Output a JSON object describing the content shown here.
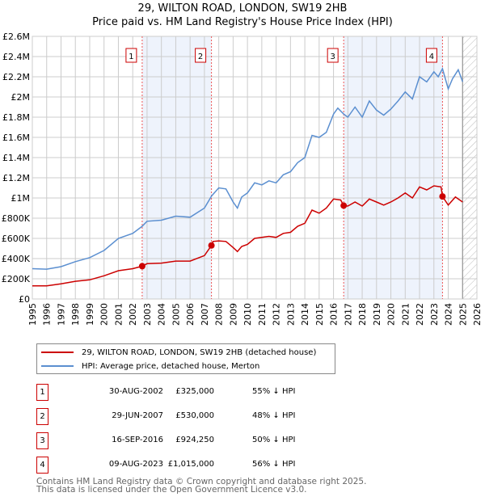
{
  "header": {
    "title": "29, WILTON ROAD, LONDON, SW19 2HB",
    "subtitle": "Price paid vs. HM Land Registry's House Price Index (HPI)"
  },
  "legend": {
    "property": "29, WILTON ROAD, LONDON, SW19 2HB (detached house)",
    "hpi": "HPI: Average price, detached house, Merton"
  },
  "sales": [
    {
      "num": "1",
      "date": "30-AUG-2002",
      "price": "£325,000",
      "hpi": "55% ↓ HPI"
    },
    {
      "num": "2",
      "date": "29-JUN-2007",
      "price": "£530,000",
      "hpi": "48% ↓ HPI"
    },
    {
      "num": "3",
      "date": "16-SEP-2016",
      "price": "£924,250",
      "hpi": "50% ↓ HPI"
    },
    {
      "num": "4",
      "date": "09-AUG-2023",
      "price": "£1,015,000",
      "hpi": "56% ↓ HPI"
    }
  ],
  "footer": {
    "line1": "Contains HM Land Registry data © Crown copyright and database right 2025.",
    "line2": "This data is licensed under the Open Government Licence v3.0."
  },
  "colors": {
    "property": "#cc0000",
    "hpi": "#5b8fd0",
    "shade": "#eef3fc",
    "grid": "#cccccc"
  },
  "chart_data": {
    "type": "line",
    "title": "29, WILTON ROAD, LONDON, SW19 2HB",
    "xlim": [
      1995,
      2026
    ],
    "ylim": [
      0,
      2600000
    ],
    "x_ticks": [
      1995,
      1996,
      1997,
      1998,
      1999,
      2000,
      2001,
      2002,
      2003,
      2004,
      2005,
      2006,
      2007,
      2008,
      2009,
      2010,
      2011,
      2012,
      2013,
      2014,
      2015,
      2016,
      2017,
      2018,
      2019,
      2020,
      2021,
      2022,
      2023,
      2024,
      2025,
      2026
    ],
    "y_ticks": [
      {
        "v": 0,
        "label": "£0"
      },
      {
        "v": 200000,
        "label": "£200K"
      },
      {
        "v": 400000,
        "label": "£400K"
      },
      {
        "v": 600000,
        "label": "£600K"
      },
      {
        "v": 800000,
        "label": "£800K"
      },
      {
        "v": 1000000,
        "label": "£1M"
      },
      {
        "v": 1200000,
        "label": "£1.2M"
      },
      {
        "v": 1400000,
        "label": "£1.4M"
      },
      {
        "v": 1600000,
        "label": "£1.6M"
      },
      {
        "v": 1800000,
        "label": "£1.8M"
      },
      {
        "v": 2000000,
        "label": "£2M"
      },
      {
        "v": 2200000,
        "label": "£2.2M"
      },
      {
        "v": 2400000,
        "label": "£2.4M"
      },
      {
        "v": 2600000,
        "label": "£2.6M"
      }
    ],
    "forecast_from": 2025,
    "shaded": [
      [
        2002.66,
        2007.49
      ],
      [
        2016.71,
        2023.6
      ]
    ],
    "sale_points": [
      {
        "label": "1",
        "x": 2002.66,
        "y": 325000
      },
      {
        "label": "2",
        "x": 2007.49,
        "y": 530000
      },
      {
        "label": "3",
        "x": 2016.71,
        "y": 924250
      },
      {
        "label": "4",
        "x": 2023.6,
        "y": 1015000
      }
    ],
    "series": [
      {
        "name": "HPI: Average price, detached house, Merton",
        "color": "#5b8fd0",
        "x": [
          1995,
          1996,
          1997,
          1998,
          1999,
          2000,
          2001,
          2002,
          2002.66,
          2003,
          2004,
          2005,
          2006,
          2007,
          2007.5,
          2008,
          2008.5,
          2009,
          2009.3,
          2009.6,
          2010,
          2010.5,
          2011,
          2011.5,
          2012,
          2012.5,
          2013,
          2013.5,
          2014,
          2014.5,
          2015,
          2015.5,
          2016,
          2016.3,
          2016.71,
          2017,
          2017.5,
          2018,
          2018.5,
          2019,
          2019.5,
          2020,
          2020.5,
          2021,
          2021.5,
          2022,
          2022.5,
          2023,
          2023.3,
          2023.6,
          2024,
          2024.3,
          2024.7,
          2025
        ],
        "y": [
          300000,
          295000,
          320000,
          370000,
          410000,
          480000,
          600000,
          650000,
          720000,
          770000,
          780000,
          820000,
          810000,
          900000,
          1020000,
          1100000,
          1090000,
          960000,
          900000,
          1010000,
          1050000,
          1150000,
          1130000,
          1170000,
          1150000,
          1230000,
          1260000,
          1350000,
          1400000,
          1620000,
          1600000,
          1650000,
          1830000,
          1890000,
          1830000,
          1800000,
          1900000,
          1800000,
          1960000,
          1870000,
          1820000,
          1880000,
          1960000,
          2050000,
          1980000,
          2200000,
          2150000,
          2250000,
          2200000,
          2280000,
          2080000,
          2180000,
          2270000,
          2150000
        ]
      },
      {
        "name": "29, WILTON ROAD, LONDON, SW19 2HB (detached house)",
        "color": "#cc0000",
        "x": [
          1995,
          1996,
          1997,
          1998,
          1999,
          2000,
          2001,
          2002,
          2002.66,
          2003,
          2004,
          2005,
          2006,
          2007,
          2007.49,
          2007.6,
          2008,
          2008.5,
          2009,
          2009.3,
          2009.6,
          2010,
          2010.5,
          2011,
          2011.5,
          2012,
          2012.5,
          2013,
          2013.5,
          2014,
          2014.5,
          2015,
          2015.5,
          2016,
          2016.5,
          2016.71,
          2017,
          2017.5,
          2018,
          2018.5,
          2019,
          2019.5,
          2020,
          2020.5,
          2021,
          2021.5,
          2022,
          2022.5,
          2023,
          2023.5,
          2023.6,
          2024,
          2024.5,
          2025
        ],
        "y": [
          130000,
          130000,
          150000,
          175000,
          190000,
          230000,
          280000,
          300000,
          325000,
          350000,
          355000,
          375000,
          375000,
          430000,
          530000,
          570000,
          575000,
          570000,
          510000,
          470000,
          520000,
          540000,
          600000,
          610000,
          620000,
          610000,
          650000,
          660000,
          720000,
          750000,
          880000,
          850000,
          900000,
          990000,
          980000,
          924250,
          920000,
          960000,
          920000,
          990000,
          960000,
          930000,
          960000,
          1000000,
          1050000,
          1000000,
          1110000,
          1080000,
          1120000,
          1110000,
          1015000,
          930000,
          1010000,
          960000
        ]
      }
    ]
  }
}
